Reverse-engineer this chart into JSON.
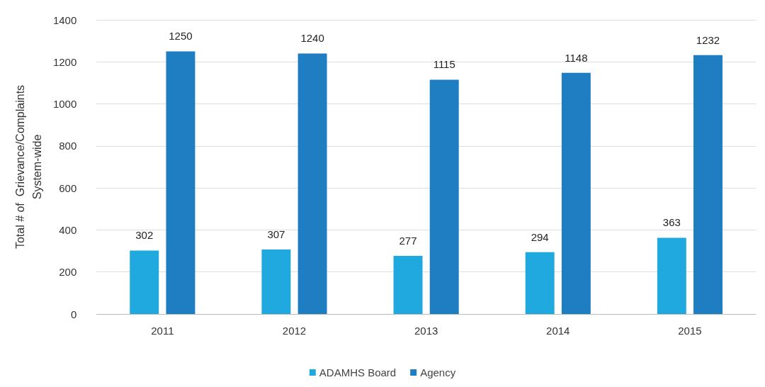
{
  "chart_data": {
    "type": "bar",
    "ylabel": "Total # of  Grievance/Complaints\nSystem-wide",
    "categories": [
      "2011",
      "2012",
      "2013",
      "2014",
      "2015"
    ],
    "series": [
      {
        "name": "ADAMHS Board",
        "color": "#1fa9df",
        "values": [
          302,
          307,
          277,
          294,
          363
        ]
      },
      {
        "name": "Agency",
        "color": "#1f7dc2",
        "values": [
          1250,
          1240,
          1115,
          1148,
          1232
        ]
      }
    ],
    "ylim": [
      0,
      1400
    ],
    "yticks": [
      0,
      200,
      400,
      600,
      800,
      1000,
      1200,
      1400
    ],
    "grid": "y",
    "legend": "bottom",
    "data_labels": true
  }
}
